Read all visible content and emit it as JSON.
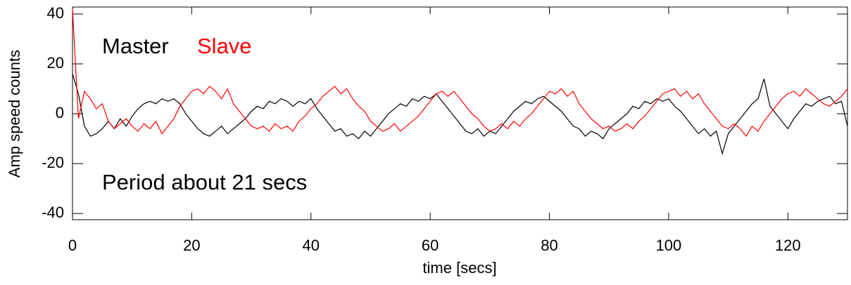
{
  "chart_data": {
    "type": "line",
    "x_label": "time [secs]",
    "y_label": "Amp speed counts",
    "annotations": [
      "Period about 21 secs"
    ],
    "xlim": [
      0,
      130
    ],
    "ylim": [
      -42.5,
      42.8
    ],
    "xticks": [
      0,
      20,
      40,
      60,
      80,
      100,
      120
    ],
    "yticks": [
      -40,
      -20,
      0,
      20,
      40
    ],
    "x": [
      0,
      1,
      2,
      3,
      4,
      5,
      6,
      7,
      8,
      9,
      10,
      11,
      12,
      13,
      14,
      15,
      16,
      17,
      18,
      19,
      20,
      21,
      22,
      23,
      24,
      25,
      26,
      27,
      28,
      29,
      30,
      31,
      32,
      33,
      34,
      35,
      36,
      37,
      38,
      39,
      40,
      41,
      42,
      43,
      44,
      45,
      46,
      47,
      48,
      49,
      50,
      51,
      52,
      53,
      54,
      55,
      56,
      57,
      58,
      59,
      60,
      61,
      62,
      63,
      64,
      65,
      66,
      67,
      68,
      69,
      70,
      71,
      72,
      73,
      74,
      75,
      76,
      77,
      78,
      79,
      80,
      81,
      82,
      83,
      84,
      85,
      86,
      87,
      88,
      89,
      90,
      91,
      92,
      93,
      94,
      95,
      96,
      97,
      98,
      99,
      100,
      101,
      102,
      103,
      104,
      105,
      106,
      107,
      108,
      109,
      110,
      111,
      112,
      113,
      114,
      115,
      116,
      117,
      118,
      119,
      120,
      121,
      122,
      123,
      124,
      125,
      126,
      127,
      128,
      129,
      130
    ],
    "series": [
      {
        "name": "Master",
        "color": "#000000",
        "values": [
          16,
          8,
          -5,
          -9,
          -8,
          -6,
          -3,
          -6,
          -2,
          -5,
          -1,
          2,
          4,
          5,
          4,
          6,
          5,
          6,
          4,
          0,
          -3,
          -6,
          -8,
          -9,
          -7,
          -5,
          -8,
          -6,
          -4,
          -2,
          1,
          3,
          2,
          5,
          4,
          6,
          5,
          3,
          5,
          4,
          6,
          2,
          -1,
          -4,
          -7,
          -6,
          -9,
          -8,
          -10,
          -7,
          -9,
          -6,
          -3,
          0,
          2,
          4,
          3,
          6,
          5,
          7,
          6,
          8,
          5,
          2,
          -1,
          -4,
          -7,
          -8,
          -6,
          -9,
          -7,
          -8,
          -5,
          -2,
          1,
          3,
          5,
          4,
          6,
          7,
          5,
          3,
          1,
          -2,
          -5,
          -6,
          -9,
          -7,
          -8,
          -10,
          -6,
          -4,
          -2,
          0,
          3,
          2,
          5,
          4,
          6,
          5,
          6,
          3,
          1,
          -2,
          -5,
          -8,
          -6,
          -9,
          -7,
          -16,
          -8,
          -5,
          -2,
          1,
          4,
          6,
          14,
          3,
          0,
          -3,
          -6,
          -2,
          1,
          4,
          3,
          5,
          6,
          7,
          4,
          5,
          -5
        ]
      },
      {
        "name": "Slave",
        "color": "#ff0000",
        "values": [
          42,
          -2,
          9,
          6,
          2,
          4,
          -3,
          -6,
          -4,
          -2,
          -5,
          -7,
          -4,
          -6,
          -3,
          -8,
          -5,
          -2,
          3,
          6,
          9,
          10,
          8,
          11,
          9,
          6,
          10,
          4,
          1,
          -2,
          -5,
          -6,
          -5,
          -7,
          -4,
          -6,
          -5,
          -7,
          -3,
          -1,
          2,
          4,
          7,
          9,
          11,
          8,
          10,
          6,
          3,
          1,
          -3,
          -5,
          -7,
          -6,
          -4,
          -7,
          -5,
          -3,
          -1,
          2,
          5,
          8,
          9,
          7,
          9,
          6,
          3,
          0,
          -2,
          -5,
          -7,
          -6,
          -4,
          -6,
          -3,
          -5,
          -2,
          0,
          3,
          6,
          9,
          8,
          10,
          7,
          9,
          4,
          1,
          -2,
          -4,
          -6,
          -5,
          -7,
          -6,
          -4,
          -6,
          -3,
          -1,
          2,
          5,
          8,
          9,
          10,
          7,
          9,
          6,
          8,
          4,
          1,
          -2,
          -5,
          -6,
          -4,
          -6,
          -9,
          -5,
          -7,
          -3,
          0,
          3,
          6,
          8,
          9,
          7,
          10,
          8,
          6,
          4,
          3,
          5,
          7,
          10
        ]
      }
    ]
  }
}
